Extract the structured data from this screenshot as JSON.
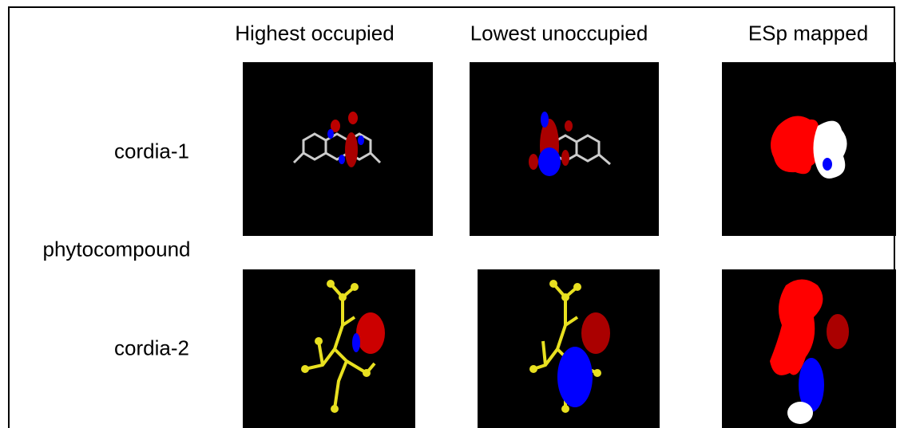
{
  "header": {
    "columns": [
      "Highest occupied",
      "Lowest unoccupied",
      "ESp mapped"
    ]
  },
  "group_label": "phytocompound",
  "rows": [
    {
      "label": "cordia-1"
    },
    {
      "label": "cordia-2"
    }
  ]
}
